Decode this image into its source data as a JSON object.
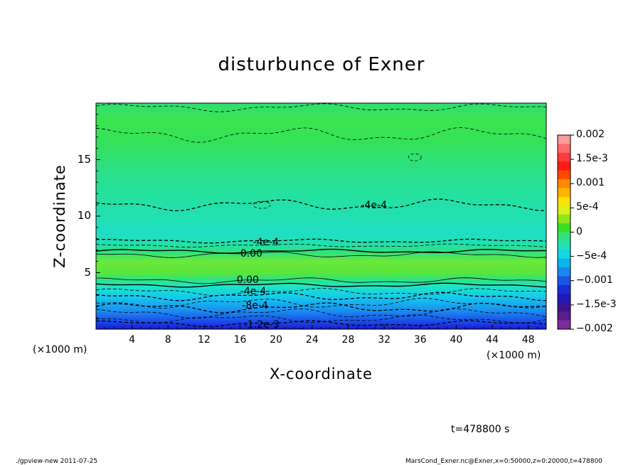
{
  "chart_data": {
    "type": "heatmap",
    "title": "disturbunce of Exner",
    "xlabel": "X-coordinate",
    "ylabel": "Z-coordinate",
    "x_unit": "(×1000 m)",
    "y_unit": "(×1000 m)",
    "xlim": [
      0,
      50
    ],
    "ylim": [
      0,
      20
    ],
    "x_ticks": [
      4,
      8,
      12,
      16,
      20,
      24,
      28,
      32,
      36,
      40,
      44,
      48
    ],
    "y_ticks": [
      5,
      10,
      15
    ],
    "colorbar": {
      "range": [
        -0.002,
        0.002
      ],
      "labels": [
        "0.002",
        "1.5e-3",
        "0.001",
        "5e-4",
        "0",
        "−5e-4",
        "−0.001",
        "−1.5e-3",
        "−0.002"
      ]
    },
    "contour_labels": [
      "-4e-4",
      "-4e-4",
      "0.00",
      "0.00",
      "-4e-4",
      "-8e-4",
      "-1.2e-3"
    ],
    "profile_by_height": [
      {
        "z": 0.3,
        "value": -0.0016
      },
      {
        "z": 1.0,
        "value": -0.0013
      },
      {
        "z": 2.0,
        "value": -0.001
      },
      {
        "z": 3.0,
        "value": -0.0007
      },
      {
        "z": 4.0,
        "value": -0.0002
      },
      {
        "z": 5.0,
        "value": 0.0004
      },
      {
        "z": 6.0,
        "value": 0.0004
      },
      {
        "z": 7.0,
        "value": -0.0002
      },
      {
        "z": 8.0,
        "value": -0.0006
      },
      {
        "z": 9.5,
        "value": -0.0005
      },
      {
        "z": 11.0,
        "value": -0.0004
      },
      {
        "z": 13.0,
        "value": -0.0002
      },
      {
        "z": 15.0,
        "value": 0.0
      },
      {
        "z": 17.5,
        "value": 0.0002
      },
      {
        "z": 20.0,
        "value": 0.0001
      }
    ],
    "grid": false
  },
  "footer": {
    "time": "t=478800 s",
    "left_note": "./gpview-new   2011-07-25",
    "right_note": "MarsCond_Exner.nc@Exner,x=0:50000,z=0:20000,t=478800"
  }
}
